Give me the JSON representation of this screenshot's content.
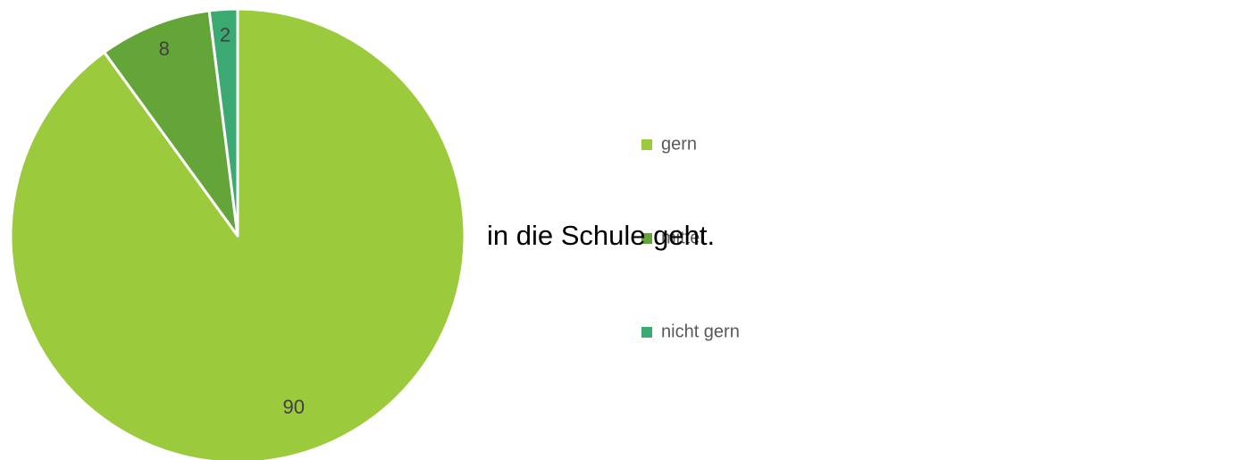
{
  "chart_data": {
    "type": "pie",
    "categories": [
      "gern",
      "mittel",
      "nicht gern"
    ],
    "values": [
      90,
      8,
      2
    ],
    "colors": [
      "#9bcb3c",
      "#63a538",
      "#3aaa72"
    ],
    "legend": "right",
    "annotation": "in die Schule geht."
  }
}
